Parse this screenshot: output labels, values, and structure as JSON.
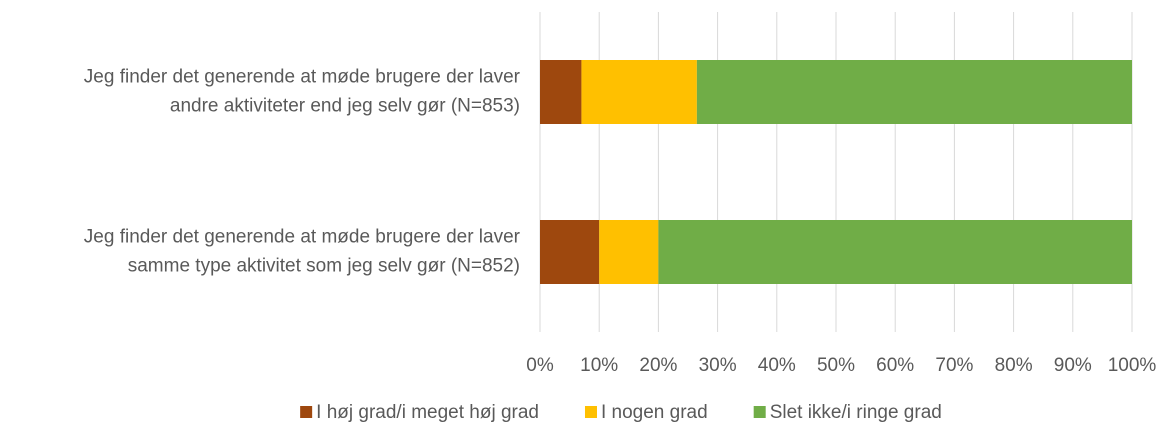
{
  "chart_data": {
    "type": "stacked-bar-horizontal",
    "categories": [
      [
        "Jeg finder det generende at møde brugere der laver",
        "andre aktiviteter end jeg selv gør (N=853)"
      ],
      [
        "Jeg finder det generende at møde brugere der laver",
        "samme type aktivitet som jeg selv gør (N=852)"
      ]
    ],
    "series": [
      {
        "name": "I høj grad/i meget høj grad",
        "color": "#9e480e",
        "values": [
          7,
          10
        ]
      },
      {
        "name": "I nogen grad",
        "color": "#ffc000",
        "values": [
          19.5,
          10
        ]
      },
      {
        "name": "Slet ikke/i ringe grad",
        "color": "#70ad47",
        "values": [
          73.5,
          80
        ]
      }
    ],
    "xlim": [
      0,
      100
    ],
    "xticks": [
      {
        "value": 0,
        "label": "0%"
      },
      {
        "value": 10,
        "label": "10%"
      },
      {
        "value": 20,
        "label": "20%"
      },
      {
        "value": 30,
        "label": "30%"
      },
      {
        "value": 40,
        "label": "40%"
      },
      {
        "value": 50,
        "label": "50%"
      },
      {
        "value": 60,
        "label": "60%"
      },
      {
        "value": 70,
        "label": "70%"
      },
      {
        "value": 80,
        "label": "80%"
      },
      {
        "value": 90,
        "label": "90%"
      },
      {
        "value": 100,
        "label": "100%"
      }
    ],
    "grid": true,
    "legend": "bottom"
  }
}
